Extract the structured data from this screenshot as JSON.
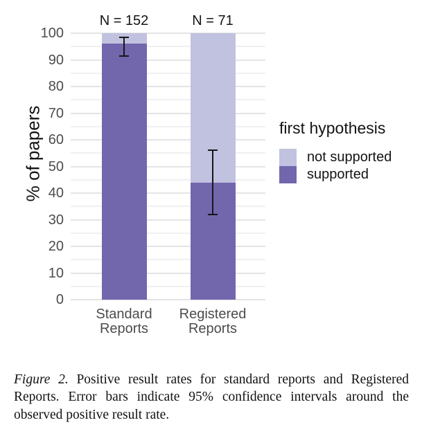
{
  "background": "#ffffff",
  "chart_data": {
    "type": "bar",
    "stacked": true,
    "title": "",
    "ylabel": "% of papers",
    "xlabel": "",
    "ylim": [
      0,
      100
    ],
    "y_ticks": [
      0,
      10,
      20,
      30,
      40,
      50,
      60,
      70,
      80,
      90,
      100
    ],
    "grid": {
      "major_every": 10,
      "minor_every": 5,
      "major_color": "#e4e4e6",
      "minor_color": "#f0f0f2"
    },
    "categories": [
      {
        "lines": [
          "Standard",
          "Reports"
        ],
        "n_label": "N = 152"
      },
      {
        "lines": [
          "Registered",
          "Reports"
        ],
        "n_label": "N = 71"
      }
    ],
    "series": [
      {
        "name": "supported",
        "color": "#7266ad",
        "values": [
          96,
          44
        ]
      },
      {
        "name": "not supported",
        "color": "#c1c1e0",
        "values": [
          4,
          56
        ]
      }
    ],
    "error_bars": {
      "on_series": "supported",
      "meaning": "95% confidence interval",
      "low": [
        91.5,
        32
      ],
      "high": [
        98.5,
        56
      ],
      "color": "#161616"
    },
    "legend": {
      "position": "right",
      "title": "first hypothesis",
      "entries": [
        {
          "label": "not supported",
          "color": "#c1c1e0"
        },
        {
          "label": "supported",
          "color": "#7266ad"
        }
      ]
    }
  },
  "caption": {
    "label": "Figure 2.",
    "text": "Positive result rates for standard reports and Registered Reports. Error bars indicate 95% confidence intervals around the observed positive result rate."
  }
}
